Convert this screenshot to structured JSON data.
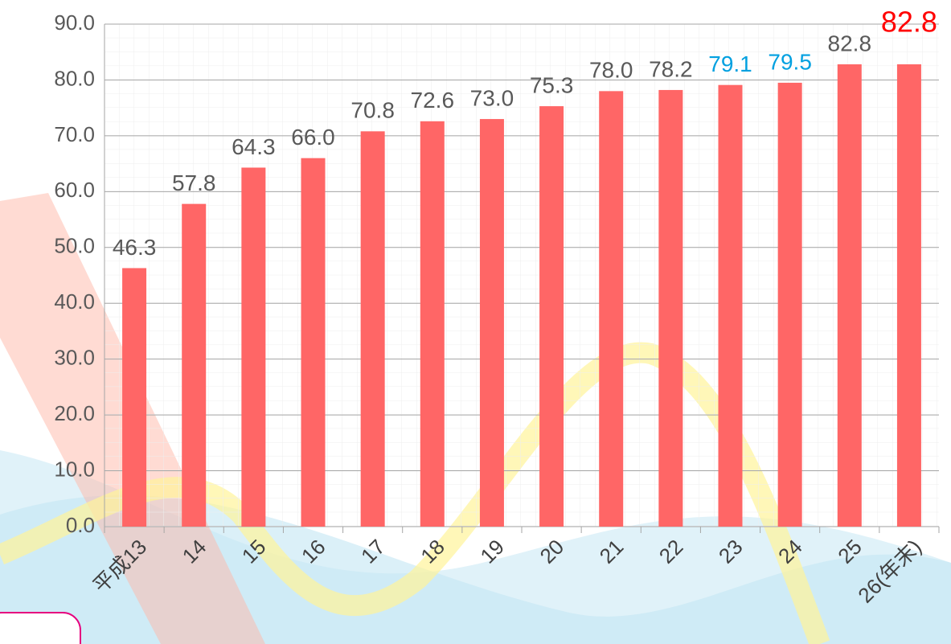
{
  "chart_data": {
    "type": "bar",
    "categories": [
      "平成13",
      "14",
      "15",
      "16",
      "17",
      "18",
      "19",
      "20",
      "21",
      "22",
      "23",
      "24",
      "25",
      "26(年末)"
    ],
    "values": [
      46.3,
      57.8,
      64.3,
      66.0,
      70.8,
      72.6,
      73.0,
      75.3,
      78.0,
      78.2,
      79.1,
      79.5,
      82.8,
      82.8
    ],
    "value_labels": [
      "46.3",
      "57.8",
      "64.3",
      "66.0",
      "70.8",
      "72.6",
      "73.0",
      "75.3",
      "78.0",
      "78.2",
      "79.1",
      "79.5",
      "82.8",
      "82.8"
    ],
    "value_label_colors": [
      "#595959",
      "#595959",
      "#595959",
      "#595959",
      "#595959",
      "#595959",
      "#595959",
      "#595959",
      "#595959",
      "#595959",
      "#00a0e0",
      "#00a0e0",
      "#595959",
      "#ff0000"
    ],
    "color": "#ff6666",
    "ylim": [
      0,
      90
    ],
    "yticks": [
      {
        "value": 0,
        "label": "0.0"
      },
      {
        "value": 10,
        "label": "10.0"
      },
      {
        "value": 20,
        "label": "20.0"
      },
      {
        "value": 30,
        "label": "30.0"
      },
      {
        "value": 40,
        "label": "40.0"
      },
      {
        "value": 50,
        "label": "50.0"
      },
      {
        "value": 60,
        "label": "60.0"
      },
      {
        "value": 70,
        "label": "70.0"
      },
      {
        "value": 80,
        "label": "80.0"
      },
      {
        "value": 90,
        "label": "90.0"
      }
    ],
    "grid": true
  }
}
